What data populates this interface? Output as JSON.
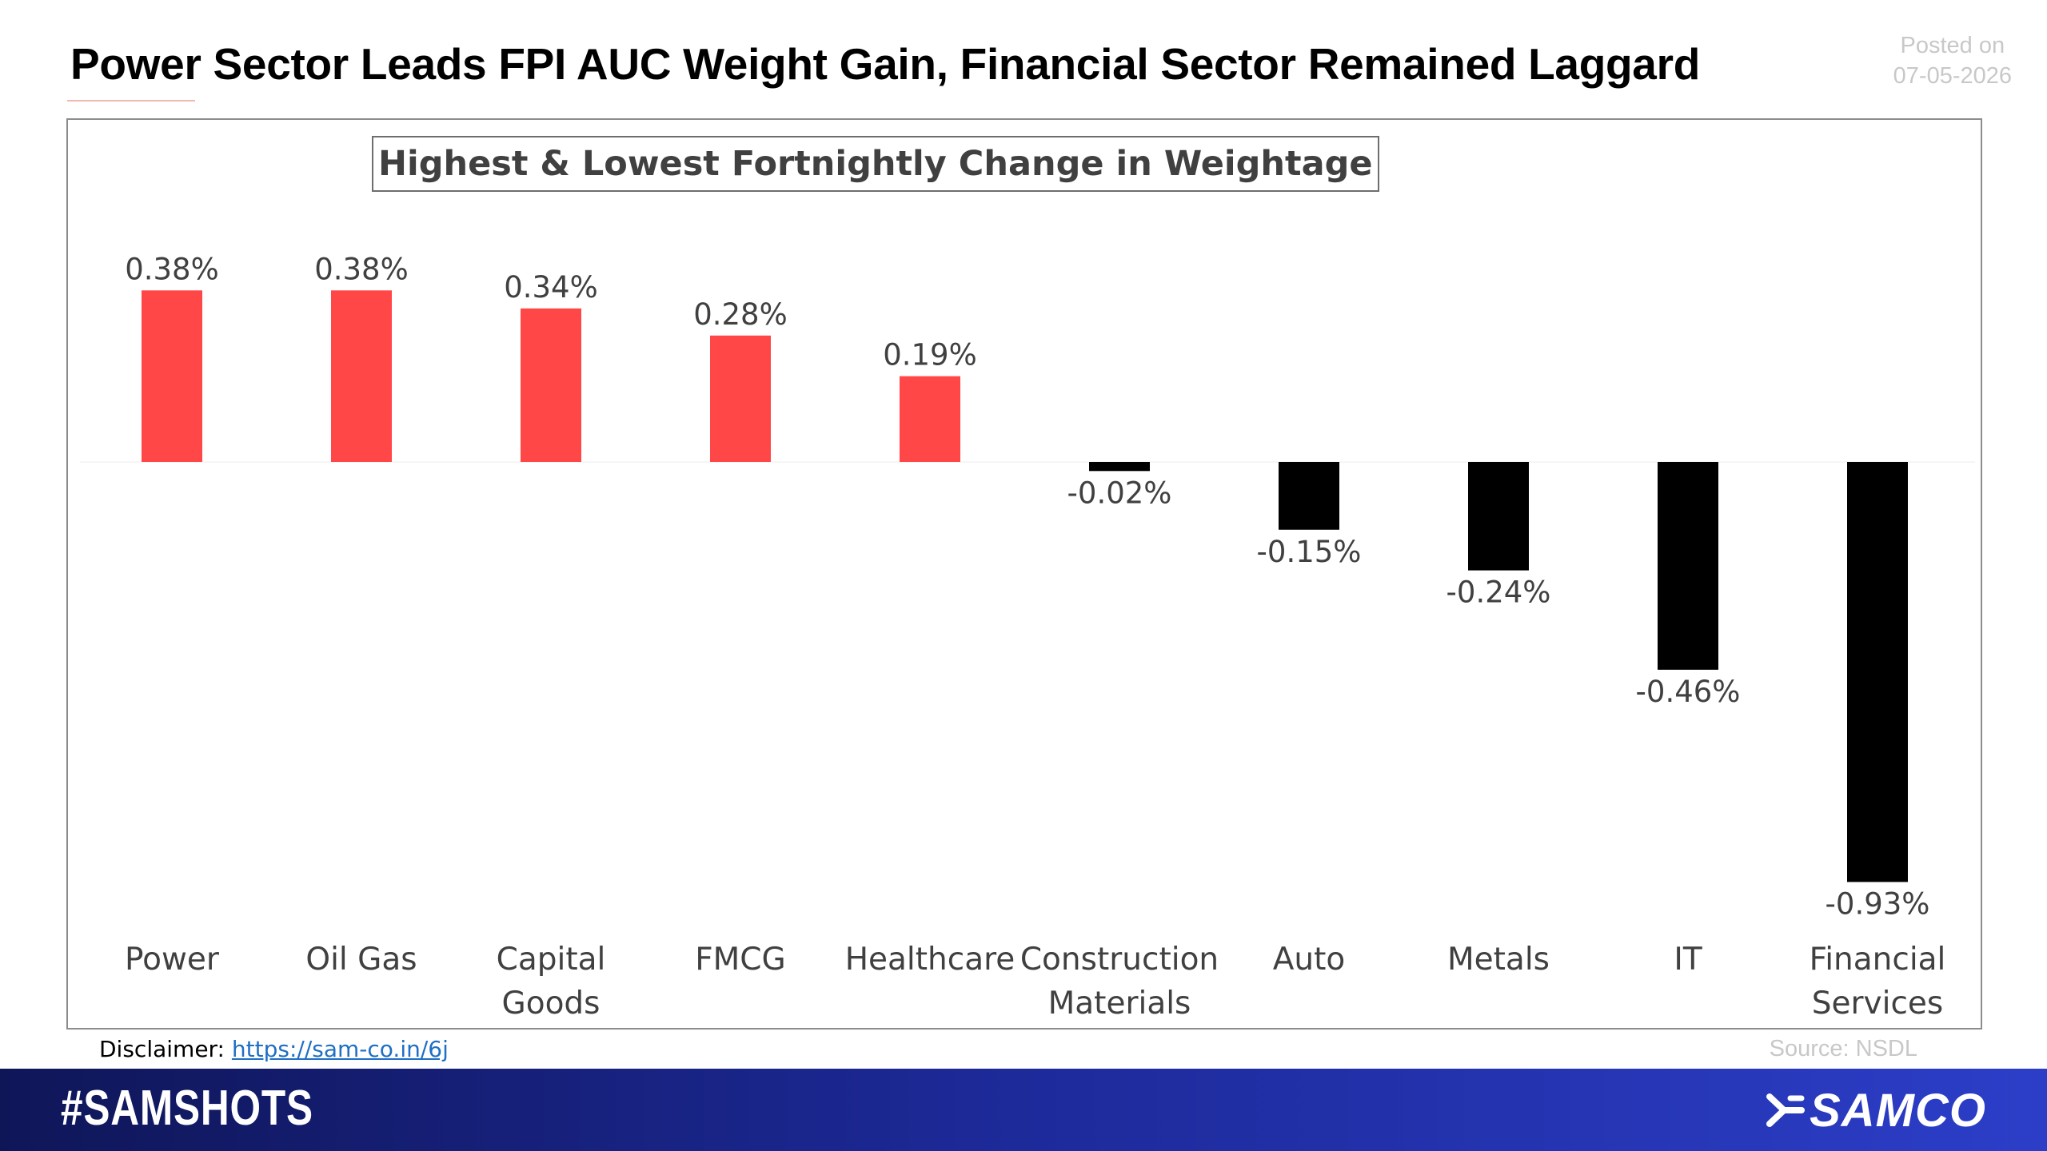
{
  "header": {
    "title": "Power Sector Leads FPI AUC Weight Gain, Financial Sector Remained Laggard",
    "posted_label": "Posted on",
    "posted_date": "07-05-2026"
  },
  "chart_data": {
    "type": "bar",
    "title": "Highest & Lowest Fortnightly Change in Weightage",
    "categories": [
      "Power",
      "Oil Gas",
      "Capital Goods",
      "FMCG",
      "Healthcare",
      "Construction Materials",
      "Auto",
      "Metals",
      "IT",
      "Financial Services"
    ],
    "category_lines": [
      [
        "Power"
      ],
      [
        "Oil Gas"
      ],
      [
        "Capital",
        "Goods"
      ],
      [
        "FMCG"
      ],
      [
        "Healthcare"
      ],
      [
        "Construction",
        "Materials"
      ],
      [
        "Auto"
      ],
      [
        "Metals"
      ],
      [
        "IT"
      ],
      [
        "Financial",
        "Services"
      ]
    ],
    "values": [
      0.38,
      0.38,
      0.34,
      0.28,
      0.19,
      -0.02,
      -0.15,
      -0.24,
      -0.46,
      -0.93
    ],
    "data_labels": [
      "0.38%",
      "0.38%",
      "0.34%",
      "0.28%",
      "0.19%",
      "-0.02%",
      "-0.15%",
      "-0.24%",
      "-0.46%",
      "-0.93%"
    ],
    "positive_color": "#ff4747",
    "negative_color": "#000000",
    "grid": false
  },
  "footer": {
    "disclaimer_label": "Disclaimer:",
    "disclaimer_link": "https://sam-co.in/6j",
    "source": "Source: NSDL",
    "hashtag": "#SAMSHOTS",
    "brand": "SAMCO"
  }
}
